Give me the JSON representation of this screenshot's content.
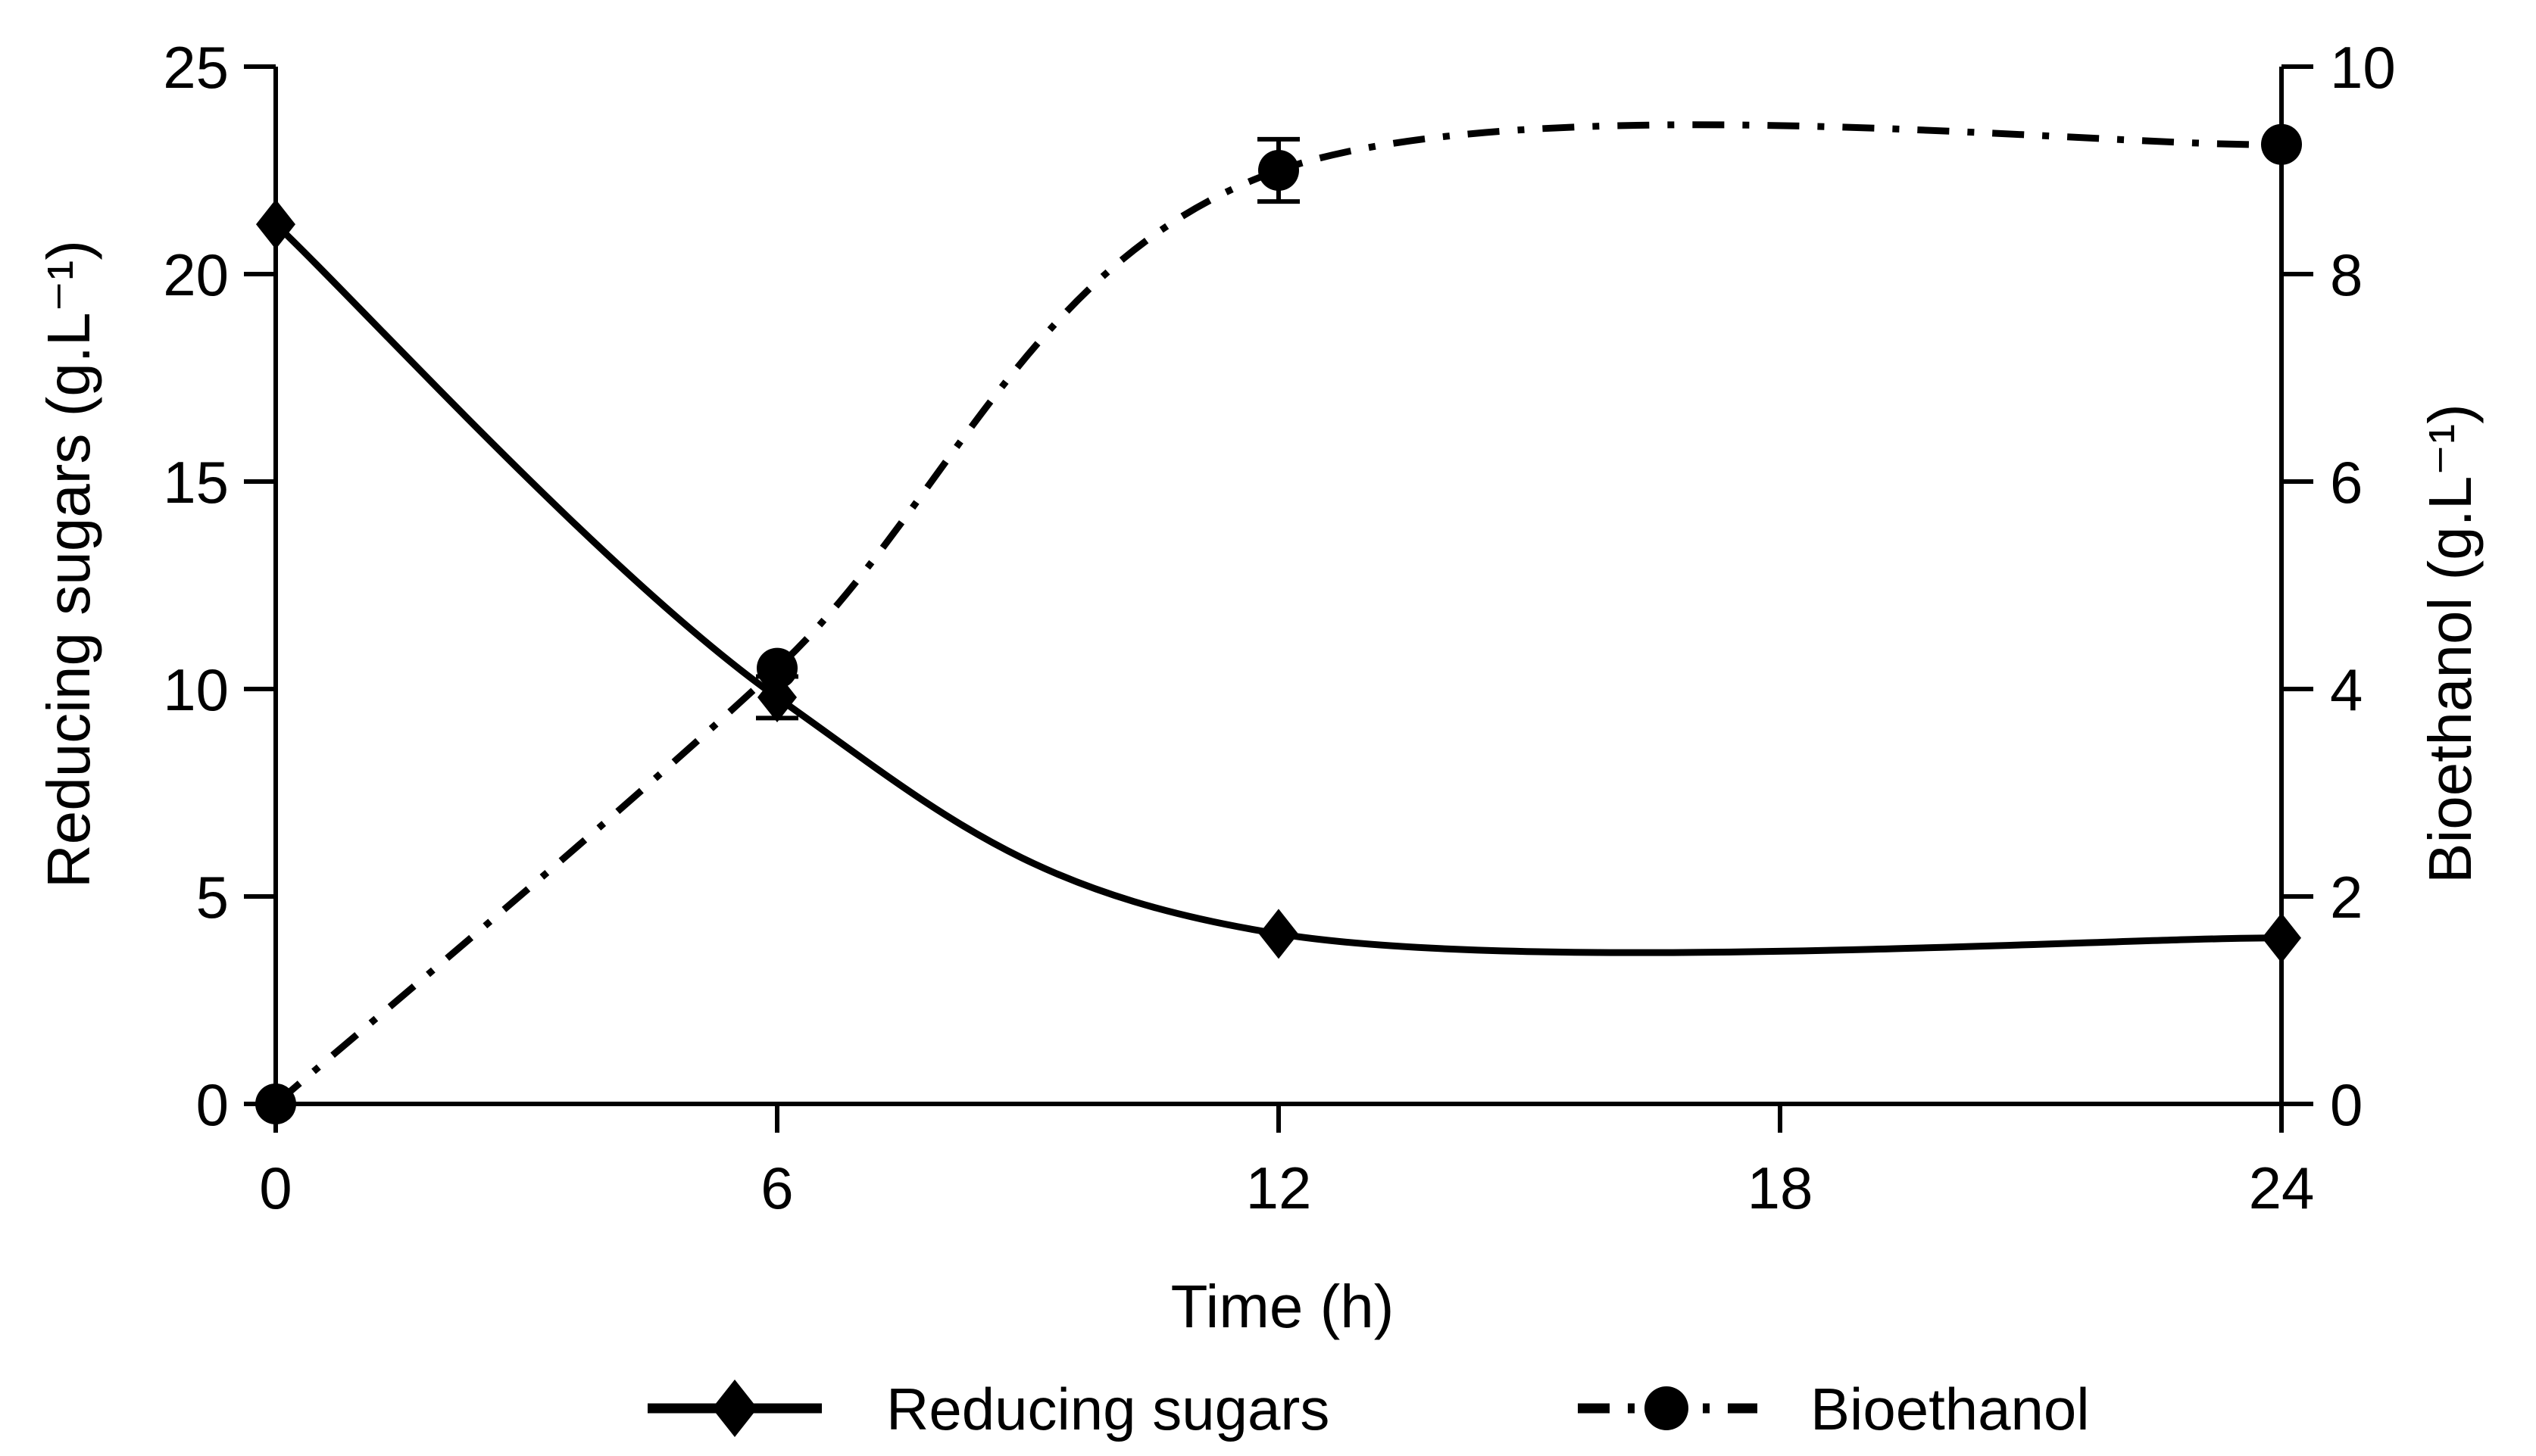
{
  "figure": {
    "background": "#ffffff",
    "ink": "#000000"
  },
  "chart_data": {
    "type": "line",
    "title": "",
    "x_label": "Time (h)",
    "y_left_label": "Reducing sugars (g.L⁻¹)",
    "y_right_label": "Bioethanol (g.L⁻¹)",
    "x": [
      0,
      6,
      12,
      24
    ],
    "series": [
      {
        "name": "Reducing sugars",
        "axis": "left",
        "marker": "diamond",
        "line_style": "solid",
        "values": [
          21.2,
          9.8,
          4.1,
          4.0
        ],
        "error_bars": [
          0,
          0.5,
          0,
          0
        ]
      },
      {
        "name": "Bioethanol",
        "axis": "right",
        "marker": "circle",
        "line_style": "dash-dot",
        "values": [
          0,
          4.2,
          9.0,
          9.25
        ],
        "error_bars": [
          0,
          0,
          0.3,
          0
        ]
      }
    ],
    "x_ticks": [
      0,
      6,
      12,
      18,
      24
    ],
    "y_left_ticks": [
      0,
      5,
      10,
      15,
      20,
      25
    ],
    "y_right_ticks": [
      0,
      2,
      4,
      6,
      8,
      10
    ],
    "xlim": [
      0,
      24
    ],
    "ylim_left": [
      0,
      25
    ],
    "ylim_right": [
      0,
      10
    ],
    "grid": false,
    "legend_position": "bottom-center"
  }
}
